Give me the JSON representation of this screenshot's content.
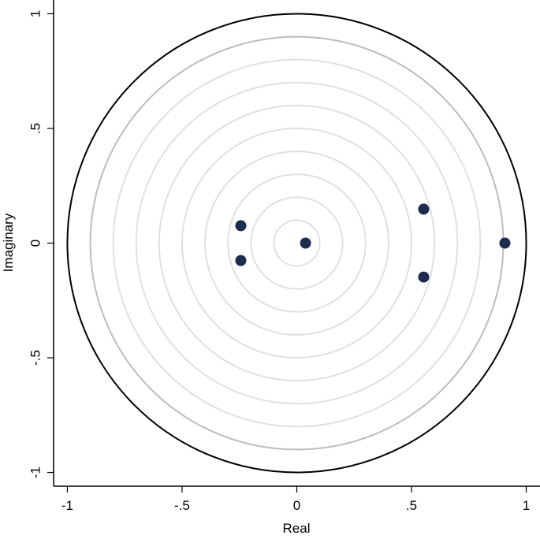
{
  "chart_data": {
    "type": "scatter",
    "x_label": "Real",
    "y_label": "Imaginary",
    "color": "#1c2b4e",
    "x": [
      0.038,
      -0.244,
      -0.244,
      0.553,
      0.553,
      0.907
    ],
    "values": [
      0,
      0.076,
      -0.076,
      0.148,
      -0.148,
      0
    ],
    "xlim": [
      -1.06,
      1.06
    ],
    "ylim": [
      -1.06,
      1.06
    ],
    "xticks": [
      -1,
      {
        "value": -0.5,
        "label": "-.5"
      },
      0,
      {
        "value": 0.5,
        "label": ".5"
      },
      1
    ],
    "yticks": [
      -1,
      {
        "value": -0.5,
        "label": "-.5"
      },
      0,
      {
        "value": 0.5,
        "label": ".5"
      },
      1
    ]
  }
}
